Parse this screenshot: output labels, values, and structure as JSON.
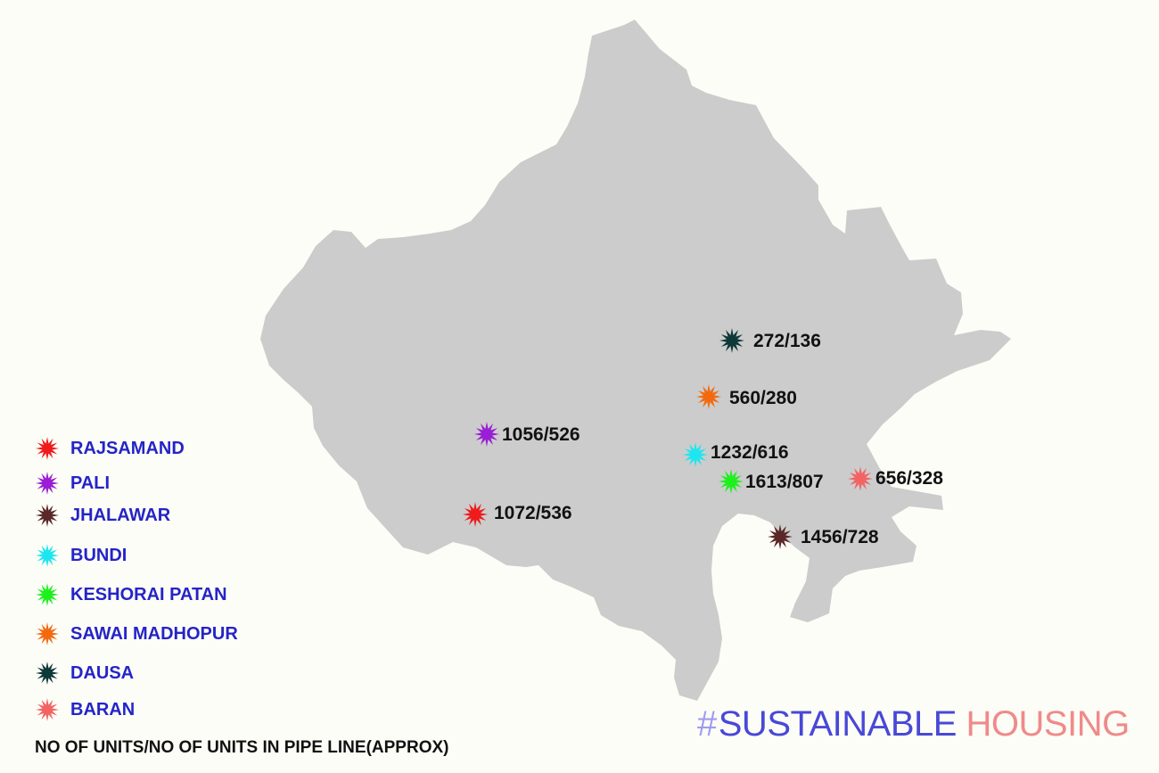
{
  "map": {
    "region_color": "#cccccc",
    "background": "#fdfdf7"
  },
  "markers": [
    {
      "district": "DAUSA",
      "label": "272/136",
      "color": "#0f3838"
    },
    {
      "district": "SAWAI MADHOPUR",
      "label": "560/280",
      "color": "#f26a10"
    },
    {
      "district": "PALI",
      "label": "1056/526",
      "color": "#9a1ed4"
    },
    {
      "district": "BUNDI",
      "label": "1232/616",
      "color": "#1ee6f0"
    },
    {
      "district": "KESHORAI PATAN",
      "label": "1613/807",
      "color": "#1ef01e"
    },
    {
      "district": "BARAN",
      "label": "656/328",
      "color": "#f26464"
    },
    {
      "district": "RAJSAMAND",
      "label": "1072/536",
      "color": "#ee1c1c"
    },
    {
      "district": "JHALAWAR",
      "label": "1456/728",
      "color": "#5a2828"
    }
  ],
  "legend": {
    "items": [
      {
        "label": "RAJSAMAND",
        "color": "#ee1c1c"
      },
      {
        "label": "PALI",
        "color": "#9a1ed4"
      },
      {
        "label": "JHALAWAR",
        "color": "#5a2828"
      },
      {
        "label": "BUNDI",
        "color": "#1ee6f0"
      },
      {
        "label": "KESHORAI PATAN",
        "color": "#1ef01e"
      },
      {
        "label": "SAWAI MADHOPUR",
        "color": "#f26a10"
      },
      {
        "label": "DAUSA",
        "color": "#0f3838"
      },
      {
        "label": "BARAN",
        "color": "#f26464"
      }
    ],
    "footnote": "NO OF UNITS/NO OF UNITS IN PIPE LINE(APPROX)"
  },
  "branding": {
    "hash": "#",
    "word1": "SUSTAINABLE ",
    "word2": "HOUSING",
    "hash_color": "#9d9df0",
    "word1_color": "#4848d8",
    "word2_color": "#f08a8a"
  }
}
